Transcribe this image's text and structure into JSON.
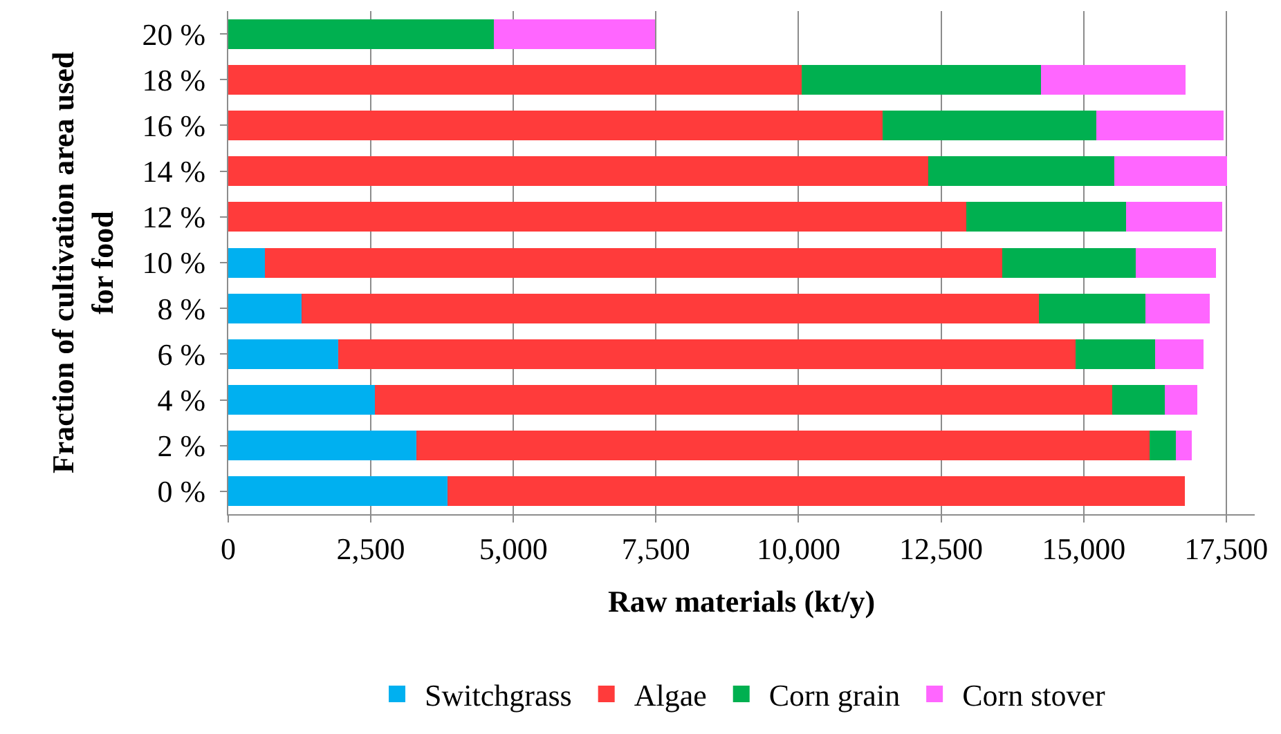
{
  "chart_data": {
    "type": "bar",
    "orientation": "horizontal",
    "stacked": true,
    "xlabel": "Raw materials (kt/y)",
    "ylabel": "Fraction of cultivation area used for food",
    "categories": [
      "20 %",
      "18 %",
      "16 %",
      "14 %",
      "12 %",
      "10 %",
      "8 %",
      "6 %",
      "4 %",
      "2 %",
      "0 %"
    ],
    "series": [
      {
        "name": "Switchgrass",
        "color": "#00b0f0",
        "values": [
          0,
          0,
          0,
          0,
          0,
          640,
          1290,
          1930,
          2570,
          3300,
          3850
        ]
      },
      {
        "name": "Algae",
        "color": "#ff3b3b",
        "values": [
          0,
          10050,
          11470,
          12280,
          12940,
          12930,
          12930,
          12930,
          12930,
          12860,
          12920
        ]
      },
      {
        "name": "Corn grain",
        "color": "#00b050",
        "values": [
          4660,
          4200,
          3750,
          3260,
          2800,
          2340,
          1860,
          1390,
          920,
          460,
          0
        ]
      },
      {
        "name": "Corn stover",
        "color": "#ff66ff",
        "values": [
          2820,
          2540,
          2240,
          1970,
          1690,
          1410,
          1130,
          850,
          570,
          280,
          0
        ]
      }
    ],
    "xlim": [
      0,
      18000
    ],
    "xticks": [
      {
        "value": 0,
        "label": "0"
      },
      {
        "value": 2500,
        "label": "2,500"
      },
      {
        "value": 5000,
        "label": "5,000"
      },
      {
        "value": 7500,
        "label": "7,500"
      },
      {
        "value": 10000,
        "label": "10,000"
      },
      {
        "value": 12500,
        "label": "12,500"
      },
      {
        "value": 15000,
        "label": "15,000"
      },
      {
        "value": 17500,
        "label": "17,500"
      }
    ],
    "grid": "x",
    "legend": "bottom"
  }
}
